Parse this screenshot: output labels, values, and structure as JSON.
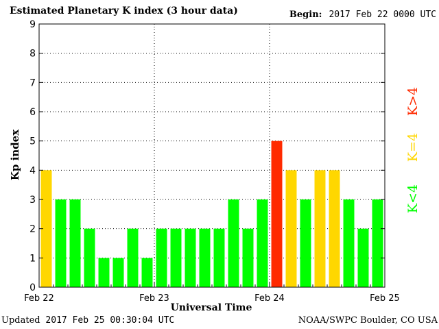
{
  "header": {
    "title": "Estimated Planetary K index (3 hour data)",
    "begin_label": "Begin:",
    "begin_value": "2017 Feb 22 0000 UTC"
  },
  "footer": {
    "updated_label": "Updated",
    "updated_value": "2017 Feb 25 00:30:04 UTC",
    "source": "NOAA/SWPC Boulder, CO USA"
  },
  "legend": {
    "low": "K<4",
    "mid": "K=4",
    "high": "K>4"
  },
  "colors": {
    "low": "#00ff00",
    "mid": "#ffd700",
    "high": "#ff2a00"
  },
  "chart_data": {
    "type": "bar",
    "title": "Estimated Planetary K index (3 hour data)",
    "xlabel": "Universal Time",
    "ylabel": "Kp index",
    "ylim": [
      0,
      9
    ],
    "yticks": [
      "0",
      "1",
      "2",
      "3",
      "4",
      "5",
      "6",
      "7",
      "8",
      "9"
    ],
    "xticks": [
      "Feb 22",
      "Feb 23",
      "Feb 24",
      "Feb 25"
    ],
    "interval_hours": 3,
    "values": [
      4,
      3,
      3,
      2,
      1,
      1,
      2,
      1,
      2,
      2,
      2,
      2,
      2,
      3,
      2,
      3,
      5,
      4,
      3,
      4,
      4,
      3,
      2,
      3
    ],
    "grid": true
  }
}
